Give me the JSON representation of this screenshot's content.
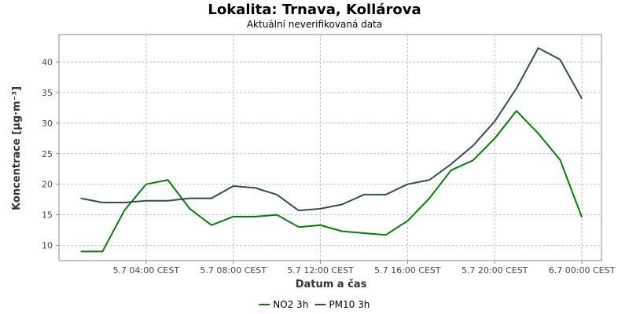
{
  "chart_data": {
    "type": "line",
    "title": "Lokalita: Trnava, Kollárova",
    "subtitle": "Aktuální neverifikovaná data",
    "xlabel": "Datum a čas",
    "ylabel": "Koncentrace [µg·m⁻³]",
    "grid": true,
    "legend_position": "bottom",
    "ylim": [
      7.5,
      44.5
    ],
    "yticks": [
      10,
      15,
      20,
      25,
      30,
      35,
      40
    ],
    "x_hours": [
      1,
      2,
      3,
      4,
      5,
      6,
      7,
      8,
      9,
      10,
      11,
      12,
      13,
      14,
      15,
      16,
      17,
      18,
      19,
      20,
      21,
      22,
      23,
      24
    ],
    "xlim": [
      0,
      24.9
    ],
    "xticks": [
      {
        "hour": 4,
        "label": "5.7 04:00 CEST"
      },
      {
        "hour": 8,
        "label": "5.7 08:00 CEST"
      },
      {
        "hour": 12,
        "label": "5.7 12:00 CEST"
      },
      {
        "hour": 16,
        "label": "5.7 16:00 CEST"
      },
      {
        "hour": 20,
        "label": "5.7 20:00 CEST"
      },
      {
        "hour": 24,
        "label": "6.7 00:00 CEST"
      }
    ],
    "series": [
      {
        "name": "NO2 3h",
        "color": "#008000",
        "values": [
          9.0,
          9.0,
          15.7,
          20.0,
          20.7,
          16.0,
          13.3,
          14.7,
          14.7,
          15.0,
          13.0,
          13.3,
          12.3,
          12.0,
          11.7,
          14.0,
          17.7,
          22.3,
          23.9,
          27.5,
          32.0,
          28.3,
          24.0,
          14.6
        ]
      },
      {
        "name": "PM10 3h",
        "color": "#2f4f4f",
        "values": [
          17.7,
          17.0,
          17.0,
          17.3,
          17.3,
          17.7,
          17.7,
          19.7,
          19.4,
          18.3,
          15.7,
          16.0,
          16.7,
          18.3,
          18.3,
          20.0,
          20.7,
          23.3,
          26.3,
          30.3,
          35.7,
          42.3,
          40.4,
          34.0
        ]
      }
    ]
  }
}
